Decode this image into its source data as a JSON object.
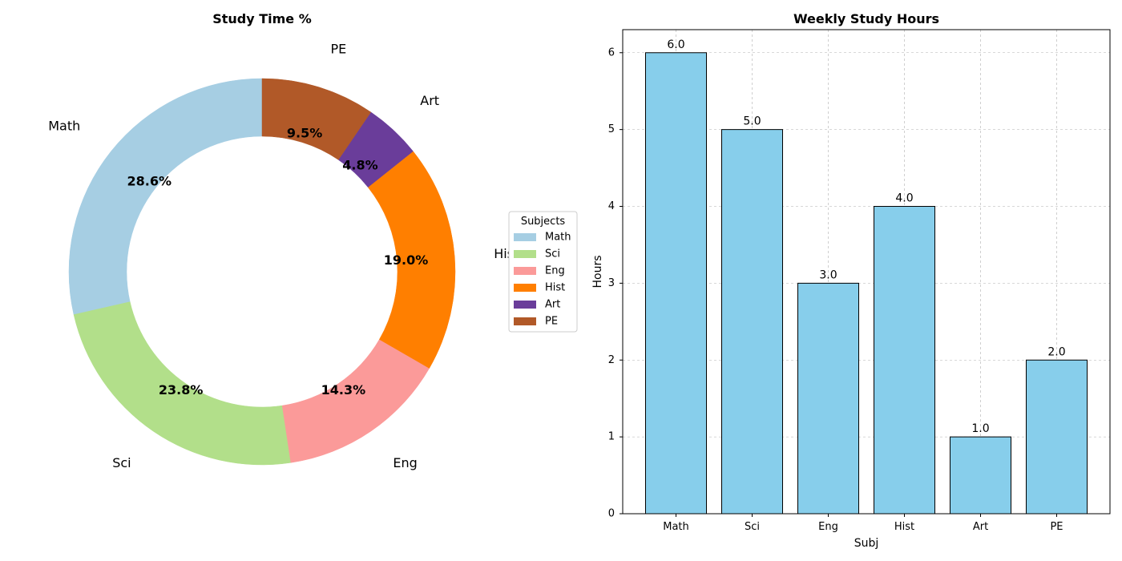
{
  "chart_data": [
    {
      "type": "pie",
      "title": "Study Time %",
      "categories": [
        "Math",
        "Sci",
        "Eng",
        "Hist",
        "Art",
        "PE"
      ],
      "values": [
        6,
        5,
        3,
        4,
        1,
        2
      ],
      "percent_labels": [
        "28.6%",
        "23.8%",
        "14.3%",
        "19.0%",
        "4.8%",
        "9.5%"
      ],
      "colors": [
        "#a6cee3",
        "#b2df8a",
        "#fb9a99",
        "#ff7f00",
        "#6a3d9a",
        "#b15928"
      ],
      "donut": true,
      "start_angle_deg": 90,
      "direction": "counterclockwise",
      "legend": {
        "title": "Subjects",
        "entries": [
          "Math",
          "Sci",
          "Eng",
          "Hist",
          "Art",
          "PE"
        ],
        "placement": "center-right"
      }
    },
    {
      "type": "bar",
      "title": "Weekly Study Hours",
      "categories": [
        "Math",
        "Sci",
        "Eng",
        "Hist",
        "Art",
        "PE"
      ],
      "values": [
        6.0,
        5.0,
        3.0,
        4.0,
        1.0,
        2.0
      ],
      "value_labels": [
        "6.0",
        "5.0",
        "3.0",
        "4.0",
        "1.0",
        "2.0"
      ],
      "xlabel": "Subj",
      "ylabel": "Hours",
      "ylim": [
        0,
        6.3
      ],
      "yticks": [
        0,
        1,
        2,
        3,
        4,
        5,
        6
      ],
      "bar_color": "#87ceeb",
      "edge_color": "#000000",
      "grid": true
    }
  ]
}
